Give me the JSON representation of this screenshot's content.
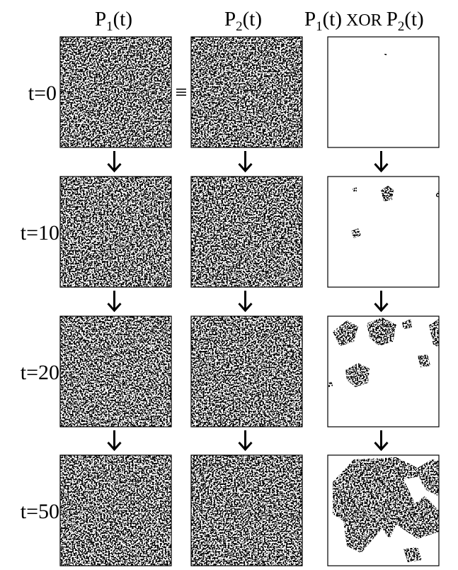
{
  "columns": [
    {
      "base": "P",
      "subscript": "1",
      "suffix": "(t)"
    },
    {
      "base": "P",
      "subscript": "2",
      "suffix": "(t)"
    },
    {
      "left": {
        "base": "P",
        "subscript": "1",
        "suffix": "(t)"
      },
      "op": "XOR",
      "right": {
        "base": "P",
        "subscript": "2",
        "suffix": "(t)"
      }
    }
  ],
  "rows": [
    "t=0",
    "t=10",
    "t=20",
    "t=50"
  ],
  "equivalence": "≡"
}
